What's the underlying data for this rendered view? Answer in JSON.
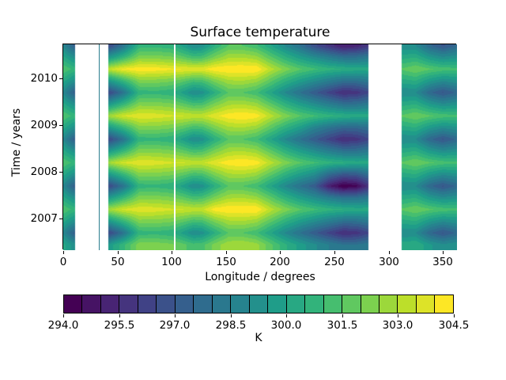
{
  "colors": {
    "background": "#ffffff",
    "text": "#000000",
    "spine": "#000000",
    "missing": "#ffffff"
  },
  "chart_data": {
    "type": "heatmap",
    "title": "Surface temperature",
    "xlabel": "Longitude / degrees",
    "ylabel": "Time / years",
    "colorbar_label": "K",
    "xticks": [
      "0",
      "50",
      "100",
      "150",
      "200",
      "250",
      "300",
      "350"
    ],
    "xtick_values": [
      0,
      50,
      100,
      150,
      200,
      250,
      300,
      350
    ],
    "yticks": [
      "2007",
      "2008",
      "2009",
      "2010"
    ],
    "ytick_values": [
      2007,
      2008,
      2009,
      2010
    ],
    "colorbar_ticks": [
      "294.0",
      "295.5",
      "297.0",
      "298.5",
      "300.0",
      "301.5",
      "303.0",
      "304.5"
    ],
    "colorbar_tick_values": [
      294.0,
      295.5,
      297.0,
      298.5,
      300.0,
      301.5,
      303.0,
      304.5
    ],
    "levels": {
      "min": 294.0,
      "max": 304.5,
      "step": 0.5,
      "count": 21
    },
    "colormap_name": "viridis",
    "colormap": [
      "#440154",
      "#482878",
      "#3e4989",
      "#31688e",
      "#26828e",
      "#1f9e89",
      "#35b779",
      "#6ece58",
      "#b5de2b",
      "#fde725"
    ],
    "xlim": [
      0,
      363
    ],
    "ylim": [
      2006.33,
      2010.73
    ],
    "grid": false,
    "missing_data_lon_bands": [
      [
        11,
        42
      ],
      [
        281,
        312
      ]
    ],
    "overlay_lines": [
      {
        "name": "thin-data-line",
        "lon": 33,
        "color": "#2a7d8e",
        "width": 1
      },
      {
        "name": "thin-missing-line",
        "lon": 103,
        "color": "#ffffff",
        "width": 2
      }
    ],
    "lon": [
      0,
      10.5,
      12,
      40.5,
      43,
      55,
      70,
      85,
      100,
      112,
      120,
      128,
      140,
      152,
      165,
      178,
      192,
      205,
      218,
      232,
      245,
      258,
      270,
      280,
      282,
      311,
      313,
      325,
      338,
      350,
      363
    ],
    "time": [
      2006.45,
      2006.7,
      2006.95,
      2007.2,
      2007.45,
      2007.7,
      2007.95,
      2008.2,
      2008.45,
      2008.7,
      2008.95,
      2009.2,
      2009.45,
      2009.7,
      2009.95,
      2010.2,
      2010.45,
      2010.7
    ],
    "values": [
      [
        300.2,
        299.2,
        null,
        null,
        299.7,
        300.8,
        302.3,
        302.3,
        302.1,
        301.6,
        301.2,
        301.3,
        302.2,
        302.9,
        303.0,
        302.7,
        301.6,
        300.6,
        299.8,
        299.1,
        298.5,
        298.0,
        298.0,
        298.3,
        null,
        null,
        300.3,
        300.5,
        299.6,
        299.1,
        299.4
      ],
      [
        298.9,
        297.2,
        null,
        null,
        296.5,
        298.0,
        300.7,
        300.8,
        300.6,
        299.7,
        299.0,
        299.2,
        300.5,
        301.5,
        301.5,
        301.1,
        300.0,
        298.9,
        298.0,
        297.1,
        296.3,
        295.5,
        295.7,
        296.3,
        null,
        null,
        299.0,
        299.0,
        297.6,
        296.9,
        297.6
      ],
      [
        300.2,
        299.2,
        null,
        null,
        299.7,
        300.8,
        302.3,
        302.3,
        302.1,
        301.6,
        301.2,
        301.3,
        302.2,
        302.9,
        303.0,
        302.7,
        301.6,
        300.6,
        299.8,
        299.1,
        298.5,
        298.0,
        298.0,
        298.3,
        null,
        null,
        300.3,
        300.5,
        299.6,
        299.1,
        299.4
      ],
      [
        301.5,
        300.8,
        null,
        null,
        302.9,
        303.6,
        303.9,
        303.8,
        303.6,
        303.5,
        303.4,
        303.4,
        304.3,
        304.5,
        304.5,
        304.5,
        303.2,
        302.3,
        301.6,
        301.1,
        300.7,
        300.5,
        300.3,
        300.3,
        null,
        null,
        301.6,
        302.0,
        301.6,
        301.3,
        301.2
      ],
      [
        300.2,
        299.2,
        null,
        null,
        299.7,
        300.8,
        302.3,
        302.3,
        302.1,
        301.6,
        301.2,
        301.3,
        302.2,
        302.9,
        303.0,
        302.7,
        301.6,
        300.6,
        299.8,
        299.1,
        298.5,
        298.0,
        298.0,
        298.3,
        null,
        null,
        300.3,
        300.5,
        299.6,
        299.1,
        299.4
      ],
      [
        298.9,
        297.2,
        null,
        null,
        296.5,
        298.0,
        300.7,
        300.8,
        300.6,
        299.7,
        299.0,
        299.2,
        300.5,
        301.5,
        301.5,
        301.1,
        300.0,
        298.9,
        298.0,
        297.1,
        295.1,
        294.0,
        294.3,
        295.5,
        null,
        null,
        299.0,
        299.0,
        297.6,
        296.9,
        297.6
      ],
      [
        300.2,
        299.2,
        null,
        null,
        299.7,
        300.8,
        302.3,
        302.3,
        302.1,
        301.6,
        301.2,
        301.3,
        302.2,
        302.9,
        303.0,
        302.7,
        301.6,
        300.6,
        299.8,
        299.1,
        297.7,
        297.0,
        297.1,
        297.8,
        null,
        null,
        300.3,
        300.5,
        299.6,
        299.1,
        299.4
      ],
      [
        301.5,
        300.8,
        null,
        null,
        302.9,
        303.6,
        303.9,
        303.8,
        303.6,
        303.5,
        303.4,
        303.4,
        303.9,
        304.3,
        304.5,
        304.3,
        303.2,
        302.3,
        301.6,
        301.1,
        300.7,
        300.5,
        300.3,
        300.3,
        null,
        null,
        301.6,
        302.0,
        301.6,
        301.3,
        301.2
      ],
      [
        300.2,
        299.2,
        null,
        null,
        299.7,
        300.8,
        302.3,
        302.3,
        302.1,
        301.6,
        301.2,
        301.3,
        302.2,
        302.9,
        303.0,
        302.7,
        301.6,
        300.6,
        299.8,
        299.1,
        298.5,
        298.0,
        298.0,
        298.3,
        null,
        null,
        300.3,
        300.5,
        299.6,
        299.1,
        299.4
      ],
      [
        298.9,
        297.2,
        null,
        null,
        296.5,
        298.0,
        300.7,
        300.8,
        300.6,
        299.7,
        299.0,
        299.2,
        300.5,
        301.5,
        301.5,
        301.1,
        300.0,
        298.9,
        298.0,
        297.1,
        296.3,
        295.5,
        295.7,
        296.3,
        null,
        null,
        299.0,
        299.0,
        297.6,
        296.9,
        297.6
      ],
      [
        300.2,
        299.2,
        null,
        null,
        299.7,
        300.8,
        302.3,
        302.3,
        302.1,
        301.6,
        301.2,
        301.3,
        302.2,
        302.9,
        303.0,
        302.7,
        301.6,
        300.6,
        299.8,
        298.7,
        298.1,
        297.6,
        297.6,
        297.9,
        null,
        null,
        300.3,
        300.5,
        299.6,
        299.1,
        299.4
      ],
      [
        301.5,
        300.8,
        null,
        null,
        302.9,
        303.6,
        303.9,
        303.8,
        303.6,
        303.5,
        303.4,
        303.4,
        303.9,
        304.3,
        304.5,
        304.3,
        303.2,
        302.3,
        301.6,
        301.1,
        300.7,
        300.5,
        300.3,
        300.3,
        null,
        null,
        301.6,
        302.0,
        301.6,
        301.3,
        301.2
      ],
      [
        300.2,
        299.2,
        null,
        null,
        299.7,
        300.8,
        302.3,
        302.3,
        302.1,
        301.6,
        301.2,
        301.3,
        302.2,
        302.9,
        303.0,
        302.7,
        301.6,
        300.6,
        299.8,
        299.1,
        298.5,
        298.0,
        298.0,
        298.3,
        null,
        null,
        300.3,
        300.5,
        299.6,
        299.1,
        299.4
      ],
      [
        298.9,
        297.2,
        null,
        null,
        296.5,
        298.0,
        300.7,
        300.8,
        300.6,
        299.7,
        299.0,
        299.2,
        300.5,
        301.5,
        301.5,
        301.1,
        300.0,
        298.9,
        298.0,
        297.1,
        296.3,
        295.5,
        295.7,
        296.3,
        null,
        null,
        299.0,
        299.0,
        297.6,
        296.9,
        297.6
      ],
      [
        300.2,
        299.2,
        null,
        null,
        299.7,
        300.8,
        302.3,
        302.3,
        302.1,
        301.6,
        301.2,
        301.3,
        302.2,
        302.9,
        303.0,
        302.7,
        301.6,
        300.6,
        299.8,
        299.1,
        298.5,
        298.0,
        298.0,
        298.3,
        null,
        null,
        300.3,
        300.5,
        299.6,
        299.1,
        299.4
      ],
      [
        301.5,
        300.8,
        null,
        null,
        303.4,
        304.1,
        304.4,
        304.3,
        304.1,
        304.0,
        303.9,
        303.9,
        304.4,
        304.5,
        304.5,
        304.5,
        303.2,
        302.3,
        301.6,
        301.1,
        300.7,
        300.5,
        300.3,
        300.3,
        null,
        null,
        301.6,
        302.0,
        301.6,
        301.3,
        301.2
      ],
      [
        300.2,
        299.2,
        null,
        null,
        299.7,
        300.8,
        302.3,
        302.3,
        302.1,
        301.6,
        301.2,
        301.3,
        302.2,
        302.9,
        303.0,
        302.7,
        301.6,
        300.6,
        299.8,
        299.1,
        298.5,
        298.0,
        298.0,
        298.3,
        null,
        null,
        300.3,
        300.5,
        299.6,
        299.1,
        299.4
      ],
      [
        298.9,
        297.2,
        null,
        null,
        296.5,
        298.0,
        300.7,
        300.8,
        300.6,
        299.7,
        299.0,
        299.2,
        300.5,
        301.5,
        301.5,
        301.1,
        300.0,
        298.9,
        298.0,
        296.6,
        295.8,
        295.0,
        295.2,
        295.8,
        null,
        null,
        299.0,
        299.0,
        297.6,
        296.9,
        297.6
      ]
    ]
  }
}
